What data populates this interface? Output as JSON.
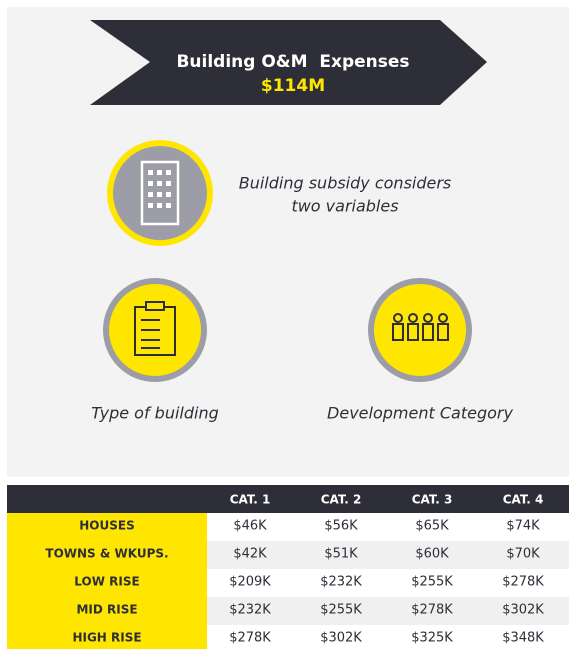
{
  "header": {
    "title": "Building O&M  Expenses",
    "amount": "$114M"
  },
  "intro": {
    "lines": [
      "Building subsidy considers",
      "two variables"
    ]
  },
  "variables": [
    "Type of building",
    "Development Category"
  ],
  "table": {
    "columns": [
      "CAT. 1",
      "CAT. 2",
      "CAT. 3",
      "CAT. 4"
    ],
    "rows": [
      {
        "label": "HOUSES",
        "values": [
          "$46K",
          "$56K",
          "$65K",
          "$74K"
        ]
      },
      {
        "label": "TOWNS & WKUPS.",
        "values": [
          "$42K",
          "$51K",
          "$60K",
          "$70K"
        ]
      },
      {
        "label": "LOW RISE",
        "values": [
          "$209K",
          "$232K",
          "$255K",
          "$278K"
        ]
      },
      {
        "label": "MID RISE",
        "values": [
          "$232K",
          "$255K",
          "$278K",
          "$302K"
        ]
      },
      {
        "label": "HIGH RISE",
        "values": [
          "$278K",
          "$302K",
          "$325K",
          "$348K"
        ]
      }
    ]
  }
}
